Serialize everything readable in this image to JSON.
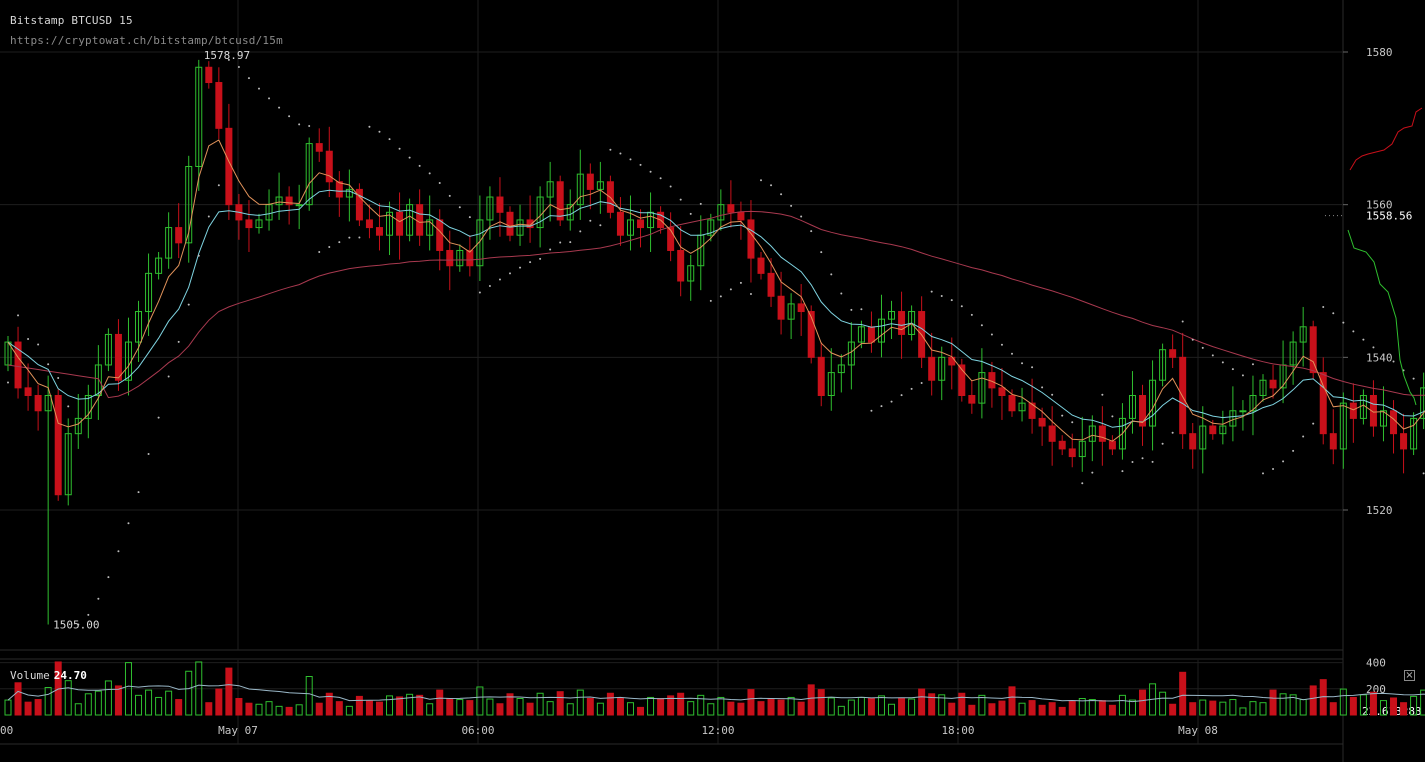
{
  "header": {
    "title": "Bitstamp BTCUSD 15",
    "url": "https://cryptowat.ch/bitstamp/btcusd/15m"
  },
  "volume_panel": {
    "label": "Volume",
    "value": "24.70",
    "close_icon": "close-icon",
    "close_glyph": "×"
  },
  "colors": {
    "background": "#000000",
    "grid": "#1e1e1e",
    "up": "#2fbf2f",
    "down": "#c8101a",
    "ema_fast": "#e0925a",
    "ema_slow": "#7ed3e0",
    "ma_long": "#a8394f",
    "psar": "#bbbbbb",
    "vol_ma": "#9ab8c8",
    "depth_ask": "#c8101a",
    "depth_bid": "#2fbf2f"
  },
  "chart_data": {
    "type": "candlestick",
    "symbol": "BTCUSD",
    "exchange": "Bitstamp",
    "interval": "15",
    "price_ticks": [
      1580,
      1560,
      1540,
      1520
    ],
    "ylim": [
      1502,
      1585
    ],
    "current_price": 1558.56,
    "high_label": "1578.97",
    "low_label": "1505.00",
    "x_labels": [
      {
        "label": "00",
        "time": "May 06 00:00"
      },
      {
        "label": "May 07",
        "time": "May 07 00:00"
      },
      {
        "label": "06:00",
        "time": "May 07 06:00"
      },
      {
        "label": "12:00",
        "time": "May 07 12:00"
      },
      {
        "label": "18:00",
        "time": "May 07 18:00"
      },
      {
        "label": "May 08",
        "time": "May 08 00:00"
      }
    ],
    "volume_ticks": [
      400,
      200
    ],
    "volume_current_label": "22.613283",
    "volume_ylim": [
      0,
      420
    ],
    "candles_close": [
      1542,
      1536,
      1535,
      1533,
      1535,
      1522,
      1530,
      1532,
      1535,
      1539,
      1543,
      1537,
      1542,
      1546,
      1551,
      1553,
      1557,
      1555,
      1565,
      1578,
      1576,
      1570,
      1560,
      1558,
      1557,
      1558,
      1560,
      1561,
      1560,
      1560,
      1568,
      1567,
      1563,
      1561,
      1562,
      1558,
      1557,
      1556,
      1559,
      1556,
      1560,
      1556,
      1558,
      1554,
      1552,
      1554,
      1552,
      1558,
      1561,
      1559,
      1556,
      1558,
      1557,
      1561,
      1563,
      1558,
      1560,
      1564,
      1562,
      1563,
      1559,
      1556,
      1558,
      1557,
      1559,
      1557,
      1554,
      1550,
      1552,
      1556,
      1558,
      1560,
      1559,
      1558,
      1553,
      1551,
      1548,
      1545,
      1547,
      1546,
      1540,
      1535,
      1538,
      1539,
      1542,
      1544,
      1542,
      1545,
      1546,
      1543,
      1546,
      1540,
      1537,
      1540,
      1539,
      1535,
      1534,
      1538,
      1536,
      1535,
      1533,
      1534,
      1532,
      1531,
      1529,
      1528,
      1527,
      1529,
      1531,
      1529,
      1528,
      1532,
      1535,
      1531,
      1537,
      1541,
      1540,
      1530,
      1528,
      1531,
      1530,
      1531,
      1533,
      1533,
      1535,
      1537,
      1536,
      1539,
      1542,
      1544,
      1538,
      1530,
      1528,
      1534,
      1532,
      1535,
      1531,
      1533,
      1530,
      1528,
      1532,
      1536,
      1538,
      1541,
      1543,
      1547,
      1553,
      1555,
      1562,
      1560,
      1557,
      1559,
      1556,
      1559
    ]
  }
}
